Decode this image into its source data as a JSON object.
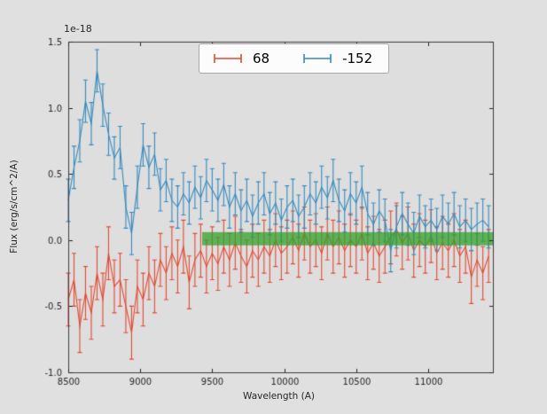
{
  "figure": {
    "background": "#e0e0e0",
    "plot_background": "#dedede",
    "frame_color": "#3c3c3c",
    "tick_color": "#262626",
    "text_color": "#262626"
  },
  "chart_data": {
    "type": "line",
    "style": "errorbar",
    "title": "",
    "offset_text": "1e-18",
    "xlabel": "Wavelength (A)",
    "ylabel": "Flux (erg/s/cm^2/A)",
    "xlim": [
      8500,
      11450
    ],
    "ylim": [
      -1.0,
      1.5
    ],
    "xticks": [
      8500,
      9000,
      9500,
      10000,
      10500,
      11000
    ],
    "yticks": [
      -1.0,
      -0.5,
      0.0,
      0.5,
      1.0,
      1.5
    ],
    "grid": false,
    "legend_position": "upper center",
    "x": [
      8500,
      8540,
      8580,
      8620,
      8660,
      8700,
      8740,
      8780,
      8820,
      8860,
      8900,
      8940,
      8980,
      9020,
      9060,
      9100,
      9140,
      9180,
      9220,
      9260,
      9300,
      9340,
      9380,
      9420,
      9460,
      9500,
      9540,
      9580,
      9620,
      9660,
      9700,
      9740,
      9780,
      9820,
      9860,
      9900,
      9940,
      9980,
      10020,
      10060,
      10100,
      10140,
      10180,
      10220,
      10260,
      10300,
      10340,
      10380,
      10420,
      10460,
      10500,
      10540,
      10580,
      10620,
      10660,
      10700,
      10740,
      10780,
      10820,
      10860,
      10900,
      10940,
      10980,
      11020,
      11060,
      11100,
      11140,
      11180,
      11220,
      11260,
      11300,
      11340,
      11380,
      11420
    ],
    "series": [
      {
        "name": "68",
        "color": "#e24a33",
        "yerr": 0.2,
        "values": [
          -0.45,
          -0.3,
          -0.65,
          -0.4,
          -0.55,
          -0.25,
          -0.45,
          -0.1,
          -0.35,
          -0.3,
          -0.5,
          -0.7,
          -0.35,
          -0.45,
          -0.25,
          -0.35,
          -0.15,
          -0.25,
          -0.1,
          -0.2,
          -0.05,
          -0.32,
          -0.15,
          -0.08,
          -0.2,
          -0.1,
          -0.18,
          -0.05,
          -0.15,
          -0.02,
          -0.12,
          -0.2,
          -0.08,
          -0.15,
          -0.05,
          -0.12,
          0.0,
          -0.1,
          -0.05,
          0.02,
          -0.08,
          0.05,
          -0.05,
          0.0,
          -0.1,
          0.05,
          -0.05,
          0.02,
          -0.08,
          0.0,
          -0.05,
          0.05,
          -0.1,
          -0.02,
          -0.12,
          -0.05,
          0.02,
          0.08,
          -0.02,
          0.05,
          -0.08,
          0.0,
          -0.05,
          0.03,
          -0.1,
          -0.02,
          -0.08,
          0.0,
          -0.12,
          -0.05,
          -0.28,
          -0.15,
          -0.25,
          -0.12
        ]
      },
      {
        "name": "-152",
        "color": "#348abd",
        "yerr": 0.16,
        "values": [
          0.3,
          0.55,
          0.75,
          1.05,
          0.88,
          1.28,
          1.02,
          0.8,
          0.62,
          0.7,
          0.25,
          0.05,
          0.4,
          0.72,
          0.55,
          0.65,
          0.38,
          0.45,
          0.3,
          0.25,
          0.35,
          0.28,
          0.4,
          0.32,
          0.45,
          0.38,
          0.3,
          0.42,
          0.25,
          0.35,
          0.22,
          0.3,
          0.18,
          0.28,
          0.35,
          0.2,
          0.28,
          0.15,
          0.25,
          0.3,
          0.18,
          0.25,
          0.35,
          0.28,
          0.4,
          0.32,
          0.45,
          0.3,
          0.22,
          0.35,
          0.28,
          0.4,
          0.2,
          0.12,
          0.22,
          0.15,
          -0.08,
          0.1,
          0.2,
          0.12,
          0.05,
          0.18,
          0.1,
          0.15,
          0.08,
          0.18,
          0.12,
          0.2,
          0.1,
          0.15,
          0.08,
          0.12,
          0.15,
          0.1
        ]
      }
    ],
    "band": {
      "color": "#33a02c",
      "alpha": 0.75,
      "x_start": 9430,
      "x_end": 11450,
      "y_center": 0.01,
      "y_halfwidth": 0.05
    }
  }
}
